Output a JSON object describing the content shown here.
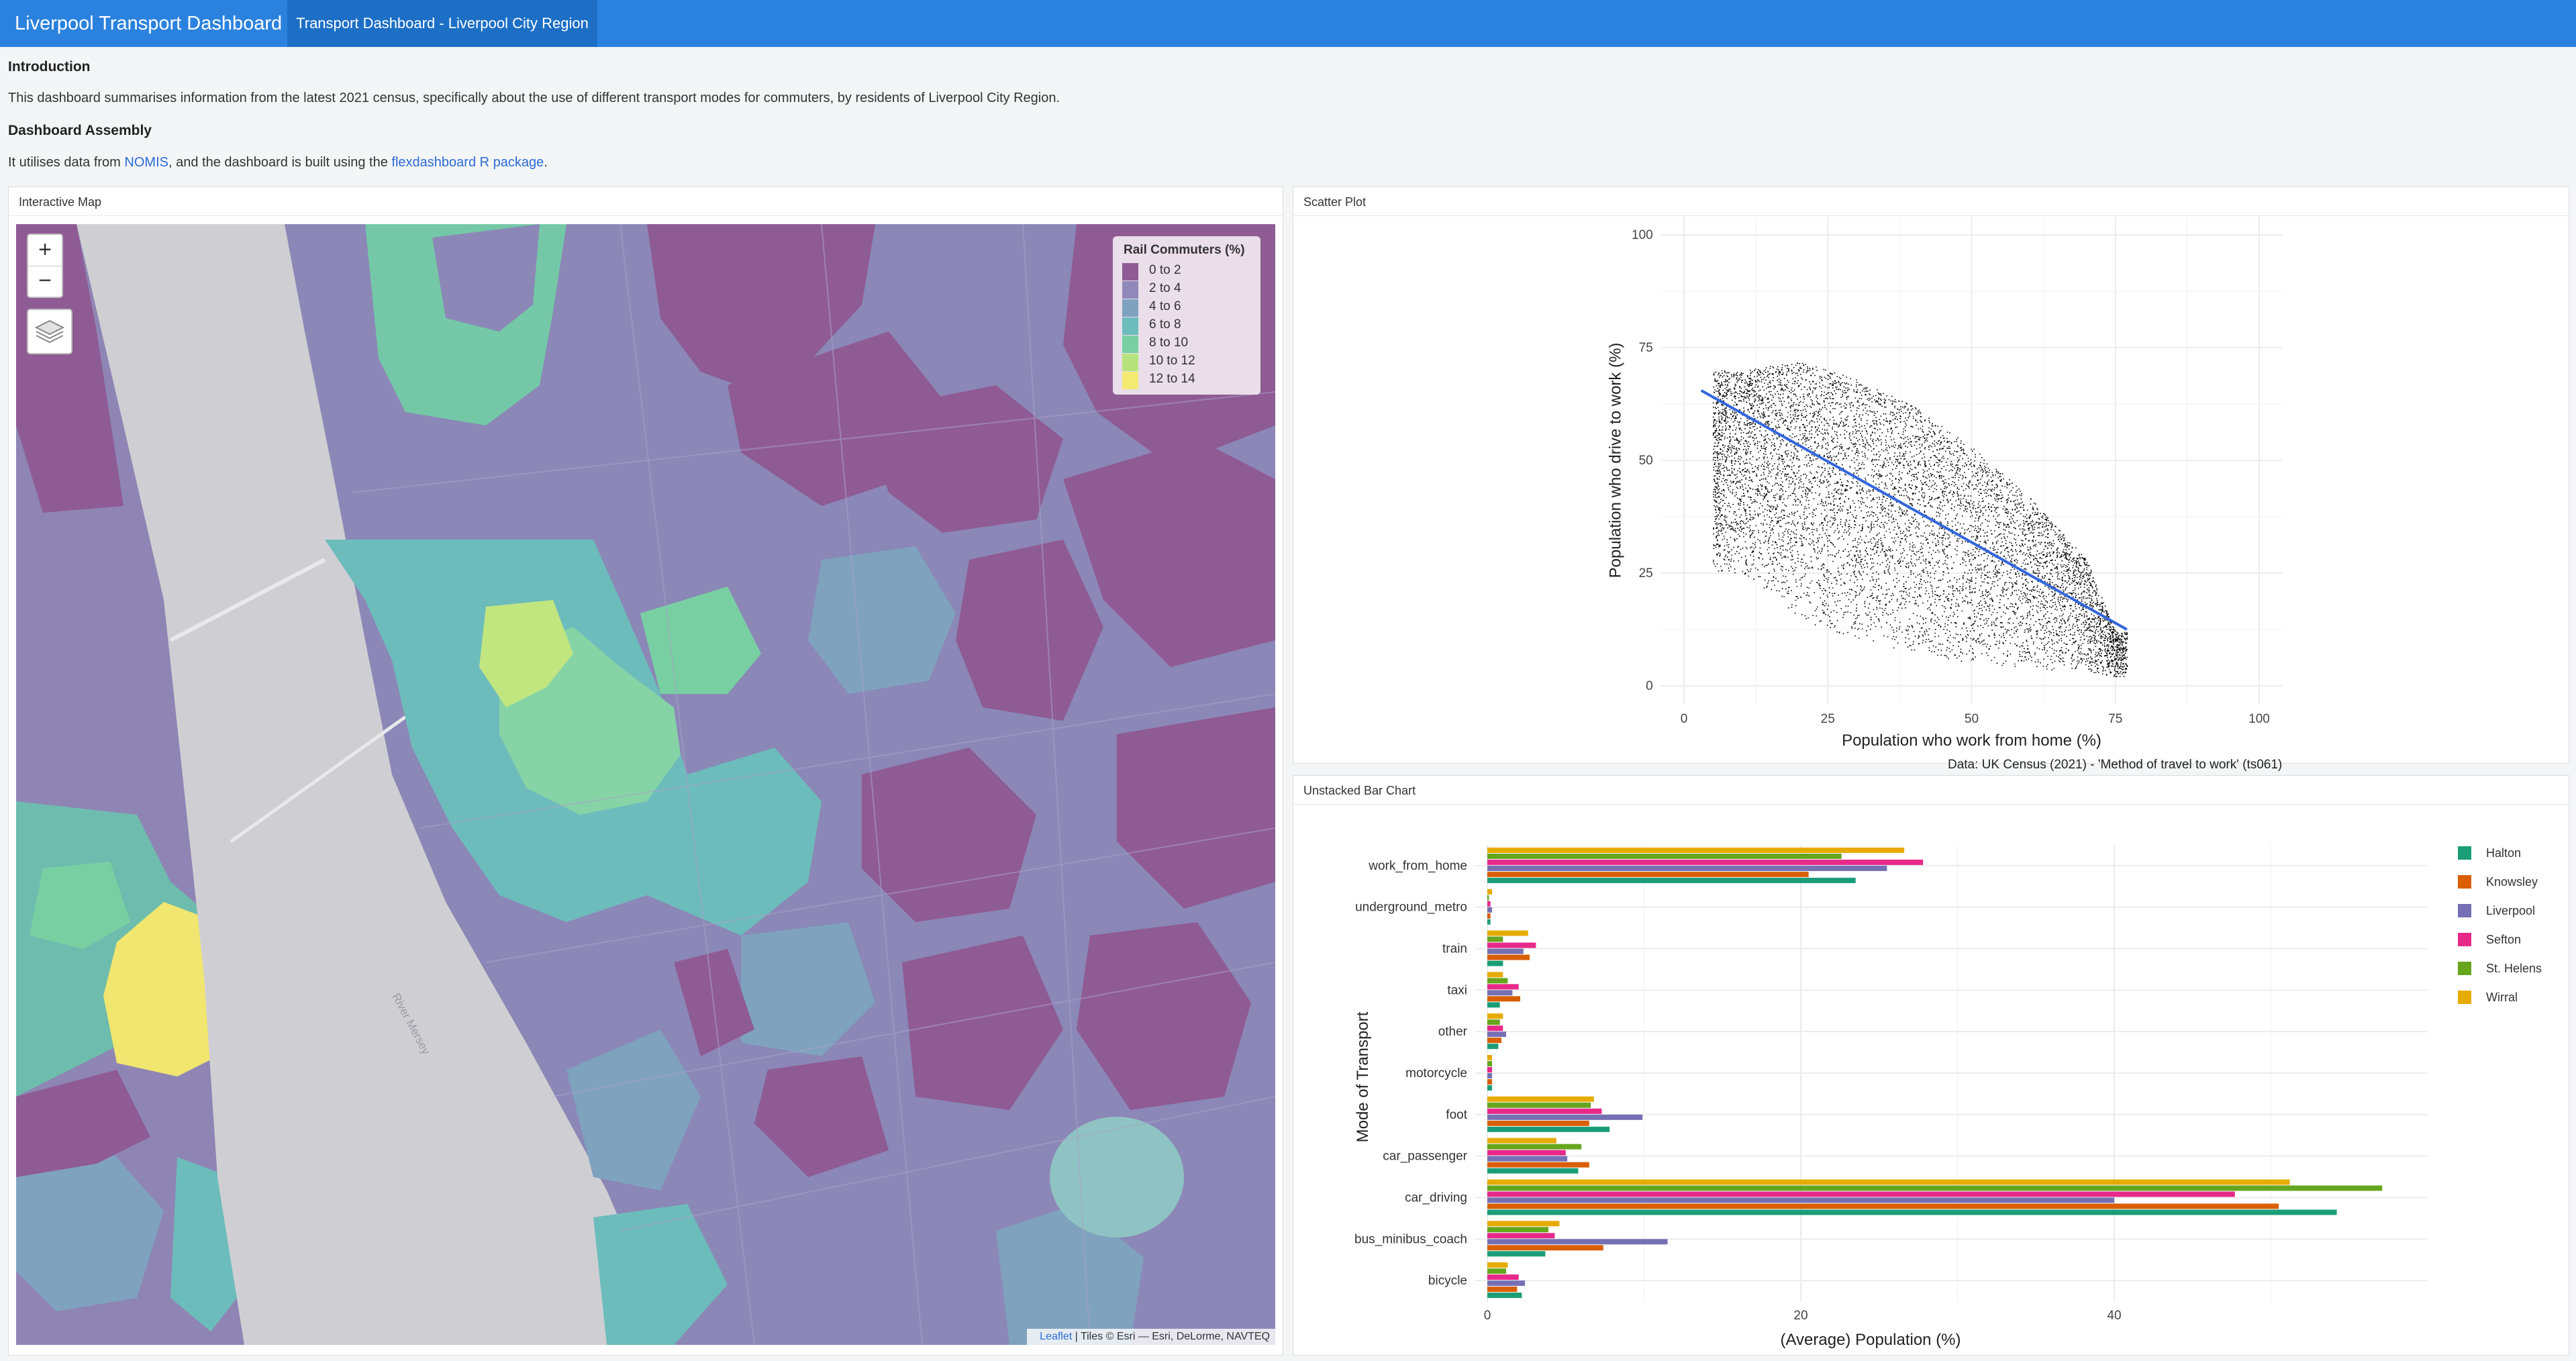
{
  "navbar": {
    "title": "Liverpool Transport Dashboard",
    "tab": "Transport Dashboard - Liverpool City Region"
  },
  "intro": {
    "heading1": "Introduction",
    "para1": "This dashboard summarises information from the latest 2021 census, specifically about the use of different transport modes for commuters, by residents of Liverpool City Region.",
    "heading2": "Dashboard Assembly",
    "para2_before": "It utilises data from ",
    "link_nomis": "NOMIS",
    "para2_middle": ", and the dashboard is built using the ",
    "link_flex": "flexdashboard R package",
    "para2_after": "."
  },
  "map": {
    "panel_title": "Interactive Map",
    "zoom_in": "+",
    "zoom_out": "−",
    "river_label": "River Mersey",
    "legend": {
      "title": "Rail Commuters (%)",
      "items": [
        {
          "label": "0 to 2",
          "color": "#8f5b94"
        },
        {
          "label": "2 to 4",
          "color": "#8f88b8"
        },
        {
          "label": "4 to 6",
          "color": "#7fa2bf"
        },
        {
          "label": "6 to 8",
          "color": "#6dbcbc"
        },
        {
          "label": "8 to 10",
          "color": "#78d0a2"
        },
        {
          "label": "10 to 12",
          "color": "#b7e37e"
        },
        {
          "label": "12 to 14",
          "color": "#f3ea72"
        }
      ]
    },
    "attribution_link": "Leaflet",
    "attribution_text": " | Tiles © Esri — Esri, DeLorme, NAVTEQ"
  },
  "scatter": {
    "panel_title": "Scatter Plot",
    "chart_data": {
      "type": "scatter",
      "xlabel": "Population who work from home (%)",
      "ylabel": "Population who drive to work (%)",
      "caption": "Data: UK Census (2021) - 'Method of travel to work' (ts061)",
      "xlim": [
        0,
        100
      ],
      "ylim": [
        0,
        100
      ],
      "x_ticks": [
        0,
        25,
        50,
        75,
        100
      ],
      "y_ticks": [
        0,
        25,
        50,
        75,
        100
      ],
      "regression_line": {
        "x": [
          3,
          77
        ],
        "y": [
          65.5,
          12.5
        ],
        "color": "#3366dd"
      },
      "point_cloud_density": [
        {
          "x": 10,
          "y_min": 25,
          "y_max": 70
        },
        {
          "x": 20,
          "y_min": 15,
          "y_max": 72
        },
        {
          "x": 30,
          "y_min": 10,
          "y_max": 68
        },
        {
          "x": 40,
          "y_min": 7,
          "y_max": 62
        },
        {
          "x": 50,
          "y_min": 5,
          "y_max": 53
        },
        {
          "x": 60,
          "y_min": 4,
          "y_max": 42
        },
        {
          "x": 70,
          "y_min": 3,
          "y_max": 28
        },
        {
          "x": 75,
          "y_min": 2,
          "y_max": 12
        }
      ],
      "grid": true
    }
  },
  "bar": {
    "panel_title": "Unstacked Bar Chart",
    "chart_data": {
      "type": "bar",
      "orientation": "horizontal",
      "xlabel": "(Average) Population (%)",
      "ylabel": "Mode of Transport",
      "xlim": [
        0,
        60
      ],
      "x_ticks": [
        0,
        20,
        40
      ],
      "categories": [
        "work_from_home",
        "underground_metro",
        "train",
        "taxi",
        "other",
        "motorcycle",
        "foot",
        "car_passenger",
        "car_driving",
        "bus_minibus_coach",
        "bicycle"
      ],
      "series": [
        {
          "name": "Halton",
          "color": "#1b9e77",
          "values": [
            23.5,
            0.2,
            1.0,
            0.8,
            0.7,
            0.3,
            7.8,
            5.8,
            54.2,
            3.7,
            2.2
          ]
        },
        {
          "name": "Knowsley",
          "color": "#d95f02",
          "values": [
            20.5,
            0.2,
            2.7,
            2.1,
            0.9,
            0.3,
            6.5,
            6.5,
            50.5,
            7.4,
            1.9
          ]
        },
        {
          "name": "Liverpool",
          "color": "#7570b3",
          "values": [
            25.5,
            0.3,
            2.3,
            1.6,
            1.2,
            0.3,
            9.9,
            5.1,
            40.0,
            11.5,
            2.4
          ]
        },
        {
          "name": "Sefton",
          "color": "#e7298a",
          "values": [
            27.8,
            0.2,
            3.1,
            2.0,
            1.0,
            0.3,
            7.3,
            5.0,
            47.7,
            4.3,
            2.0
          ]
        },
        {
          "name": "St. Helens",
          "color": "#66a61e",
          "values": [
            22.6,
            0.1,
            1.0,
            1.3,
            0.8,
            0.3,
            6.6,
            6.0,
            57.1,
            3.9,
            1.2
          ]
        },
        {
          "name": "Wirral",
          "color": "#e6ab02",
          "values": [
            26.6,
            0.3,
            2.6,
            1.0,
            1.0,
            0.3,
            6.8,
            4.4,
            51.2,
            4.6,
            1.3
          ]
        }
      ],
      "legend_position": "right",
      "grid": true
    }
  }
}
